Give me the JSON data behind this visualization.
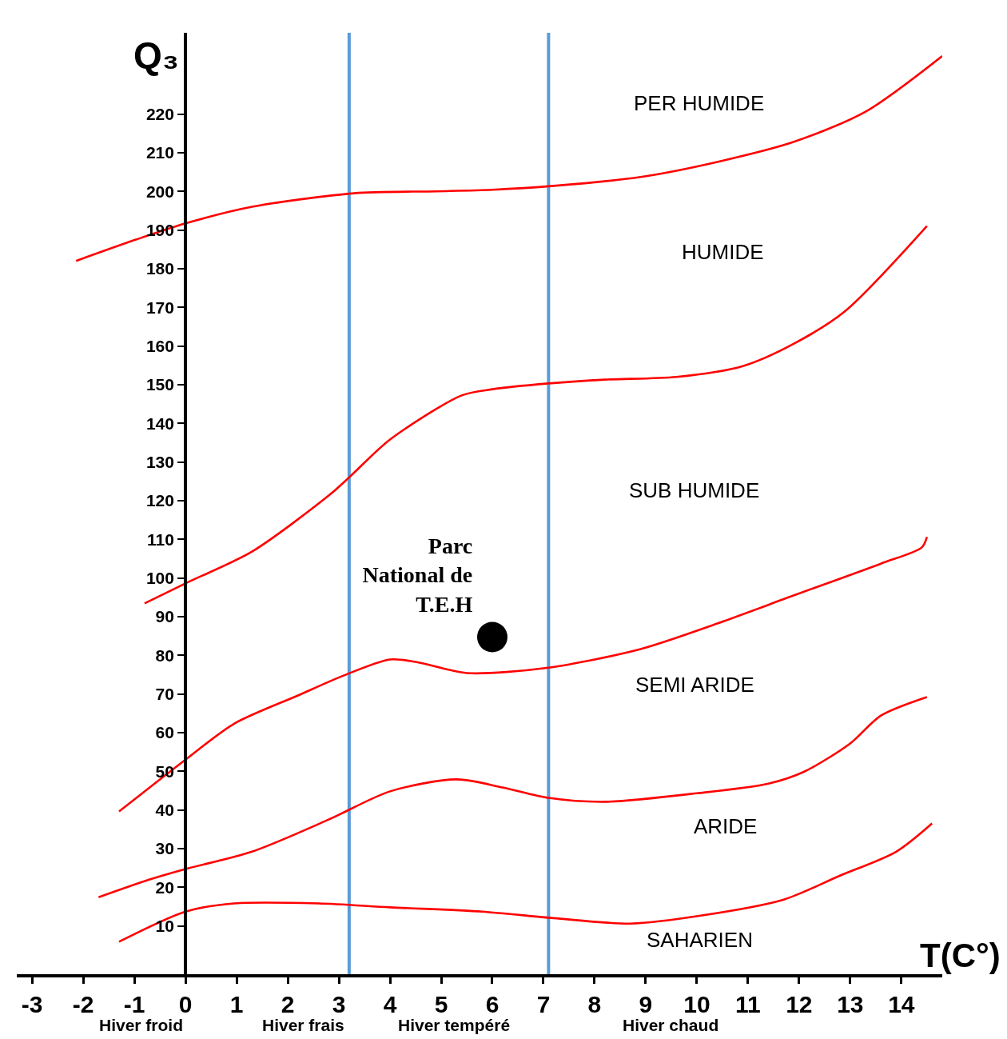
{
  "chart_data": {
    "type": "line",
    "xlabel": "T(C°)",
    "ylabel": "Q₃",
    "xlim": [
      -3.3,
      14.8
    ],
    "ylim": [
      -2.5,
      241
    ],
    "xticks": [
      -3,
      -2,
      -1,
      0,
      1,
      2,
      3,
      4,
      5,
      6,
      7,
      8,
      9,
      10,
      11,
      12,
      13,
      14
    ],
    "yticks": [
      10,
      20,
      30,
      40,
      50,
      60,
      70,
      80,
      90,
      100,
      110,
      120,
      130,
      140,
      150,
      160,
      170,
      180,
      190,
      200,
      210,
      220
    ],
    "grid": false,
    "legend": false,
    "marker": "none",
    "line_style": "solid",
    "series": [
      {
        "color": "#ff0000",
        "x": [
          -2.14,
          -0.97,
          0,
          1.3,
          3.3,
          4.9,
          6,
          7.2,
          8.9,
          10.4,
          11.9,
          13.3,
          14.8
        ],
        "values": [
          182,
          187.5,
          191.7,
          196,
          199.5,
          200,
          200.4,
          201.4,
          203.7,
          207.6,
          212.8,
          220.6,
          235
        ]
      },
      {
        "color": "#ff0000",
        "x": [
          -0.8,
          0,
          1.3,
          2.8,
          3.2,
          4,
          5.4,
          6,
          7.1,
          8.2,
          9.6,
          10.9,
          11.9,
          12.9,
          14.5
        ],
        "values": [
          93.4,
          98.6,
          106.8,
          121.3,
          126,
          135.8,
          147.2,
          148.8,
          150.3,
          151.3,
          152,
          154.8,
          160.6,
          169,
          191
        ]
      },
      {
        "color": "#ff0000",
        "x": [
          -1.3,
          -0.7,
          0,
          0.95,
          2.2,
          3.1,
          4,
          4.5,
          5.5,
          7.1,
          8.9,
          10.4,
          11.9,
          13.6,
          14.4,
          14.5
        ],
        "values": [
          39.6,
          45.8,
          53,
          62.3,
          69.6,
          74.8,
          78.9,
          78.3,
          75.4,
          76.8,
          81.6,
          88.2,
          95.5,
          103.7,
          107.9,
          110.6
        ]
      },
      {
        "color": "#ff0000",
        "x": [
          -1.7,
          -0.7,
          0,
          1.3,
          2.8,
          4,
          5.3,
          6.2,
          7.1,
          8.2,
          10,
          11.4,
          12.1,
          13,
          13.6,
          14.5
        ],
        "values": [
          17.4,
          22,
          24.7,
          29.2,
          37.5,
          44.8,
          47.9,
          45.8,
          43.1,
          42.1,
          44.3,
          46.8,
          49.9,
          57.2,
          64.4,
          69.2
        ]
      },
      {
        "color": "#ff0000",
        "x": [
          -1.3,
          0,
          0.95,
          2.6,
          4,
          5.8,
          7.2,
          8.7,
          10.1,
          11.7,
          12.8,
          13.9,
          14.6
        ],
        "values": [
          5.9,
          13.7,
          15.8,
          15.8,
          14.8,
          13.7,
          12,
          10.6,
          12.7,
          16.8,
          23,
          29.2,
          36.5
        ]
      },
      {
        "type": "scatter",
        "name": "Parc\nNational de\nT.E.H",
        "color": "#000000",
        "marker": "circle",
        "x": [
          6
        ],
        "values": [
          84.7
        ]
      }
    ],
    "ref_lines": [
      {
        "axis": "x",
        "value": 3.2,
        "color": "#5b9bd5"
      },
      {
        "axis": "x",
        "value": 7.1,
        "color": "#5b9bd5"
      }
    ],
    "annotations": [
      "PER HUMIDE",
      "HUMIDE",
      "SUB HUMIDE",
      "SEMI ARIDE",
      "ARIDE",
      "SAHARIEN",
      "Hiver froid",
      "Hiver frais",
      "Hiver tempéré",
      "Hiver chaud"
    ]
  }
}
